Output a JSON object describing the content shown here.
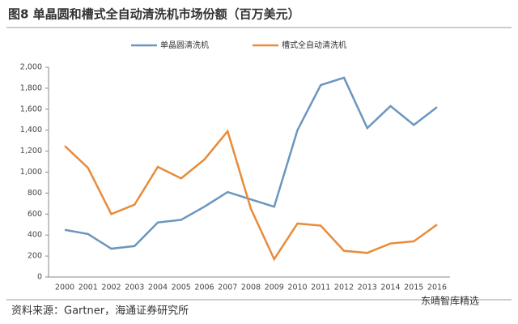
{
  "chart_data": {
    "type": "line",
    "title": "图8 单晶圆和槽式全自动清洗机市场份额（百万美元）",
    "source": "资料来源：Gartner，海通证券研究所",
    "watermark": "东晴智库精选",
    "categories": [
      "2000",
      "2001",
      "2002",
      "2003",
      "2004",
      "2005",
      "2006",
      "2007",
      "2008",
      "2009",
      "2010",
      "2011",
      "2012",
      "2013",
      "2014",
      "2015",
      "2016"
    ],
    "series": [
      {
        "name": "单晶圆清洗机",
        "color": "#6b96bf",
        "values": [
          450,
          410,
          270,
          295,
          520,
          545,
          670,
          810,
          740,
          670,
          1400,
          1830,
          1900,
          1420,
          1630,
          1450,
          1620
        ]
      },
      {
        "name": "槽式全自动清洗机",
        "color": "#e88b3a",
        "values": [
          1250,
          1040,
          600,
          690,
          1050,
          940,
          1120,
          1390,
          650,
          170,
          510,
          490,
          250,
          230,
          320,
          340,
          500
        ]
      }
    ],
    "ylim": [
      0,
      2000
    ],
    "yticks": [
      0,
      200,
      400,
      600,
      800,
      {
        "value": 1000,
        "label": "1,000"
      },
      {
        "value": 1200,
        "label": "1,200"
      },
      {
        "value": 1400,
        "label": "1,400"
      },
      {
        "value": 1600,
        "label": "1,600"
      },
      {
        "value": 1800,
        "label": "1,800"
      },
      {
        "value": 2000,
        "label": "2,000"
      }
    ],
    "grid": false
  }
}
